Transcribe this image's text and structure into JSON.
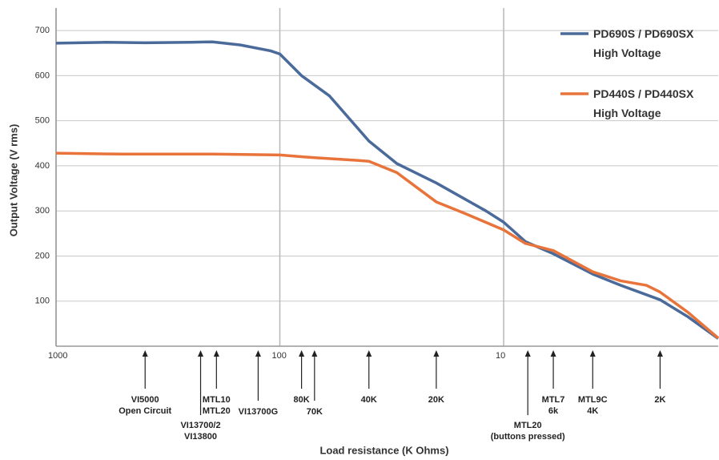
{
  "chart_data": {
    "type": "line",
    "y_label": "Output Voltage (V rms)",
    "x_label": "Load resistance  (K Ohms)",
    "xlim": [
      1000,
      1.1
    ],
    "x_log": true,
    "xticks": [
      1000,
      100,
      10
    ],
    "ylim": [
      0,
      750
    ],
    "yticks": [
      100,
      200,
      300,
      400,
      500,
      600,
      700
    ],
    "grid": true,
    "legend": "top-right",
    "series": [
      {
        "name": "PD690S / PD690SX\nHigh Voltage",
        "color": "#4a6a9a",
        "x": [
          1000,
          600,
          400,
          250,
          200,
          150,
          110,
          100,
          80,
          60,
          40,
          30,
          20,
          12,
          10,
          8,
          6,
          4,
          3,
          2,
          1.5,
          1.1
        ],
        "values": [
          672,
          674,
          673,
          674,
          675,
          668,
          655,
          648,
          600,
          555,
          455,
          405,
          362,
          300,
          275,
          232,
          205,
          160,
          135,
          103,
          65,
          17
        ]
      },
      {
        "name": "PD440S / PD440SX\nHigh Voltage",
        "color": "#e8743b",
        "x": [
          1000,
          500,
          200,
          100,
          70,
          45,
          40,
          30,
          20,
          15,
          10,
          8,
          6,
          4,
          3,
          2.3,
          2,
          1.5,
          1.1
        ],
        "values": [
          428,
          426,
          426,
          424,
          418,
          412,
          410,
          385,
          320,
          295,
          258,
          228,
          212,
          165,
          145,
          135,
          120,
          75,
          18
        ]
      }
    ],
    "annotations": [
      {
        "x": 400,
        "label": "VI5000\nOpen Circuit"
      },
      {
        "x": 226,
        "label": "VI13700/2\nVI13800"
      },
      {
        "x": 192,
        "label": "MTL10\nMTL20"
      },
      {
        "x": 125,
        "label": "VI13700G"
      },
      {
        "x": 80,
        "label": "80K"
      },
      {
        "x": 70,
        "label": "70K"
      },
      {
        "x": 40,
        "label": "40K"
      },
      {
        "x": 20,
        "label": "20K"
      },
      {
        "x": 7.8,
        "label": "MTL20\n(buttons pressed)"
      },
      {
        "x": 6,
        "label": "MTL7\n6k"
      },
      {
        "x": 4,
        "label": "MTL9C\n4K"
      },
      {
        "x": 2,
        "label": "2K"
      }
    ]
  }
}
